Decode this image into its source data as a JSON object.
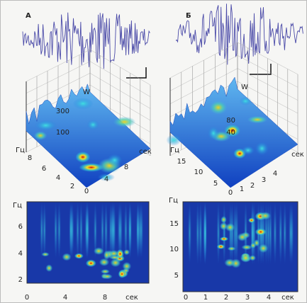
{
  "panels": [
    {
      "label": "А",
      "surface": {
        "z_label": "W",
        "z_ticks": [
          "300",
          "100"
        ],
        "y_label": "Гц",
        "y_ticks": [
          "8",
          "6",
          "4",
          "2"
        ],
        "x_ticks": [
          "0",
          "4",
          "8"
        ],
        "x_label": "сек"
      },
      "spectrogram": {
        "y_label": "Гц",
        "y_ticks": [
          "6",
          "4",
          "2"
        ],
        "x_ticks": [
          "0",
          "4",
          "8"
        ],
        "x_label": "сек"
      }
    },
    {
      "label": "Б",
      "surface": {
        "z_label": "W",
        "z_ticks": [
          "80",
          "40"
        ],
        "y_label": "Гц",
        "y_ticks": [
          "15",
          "10",
          "5"
        ],
        "x_ticks": [
          "0",
          "1",
          "2",
          "3",
          "4"
        ],
        "x_label": "сек"
      },
      "spectrogram": {
        "y_label": "Гц",
        "y_ticks": [
          "15",
          "10",
          "5"
        ],
        "x_ticks": [
          "0",
          "1",
          "2",
          "3",
          "4"
        ],
        "x_label": "сек"
      }
    }
  ]
}
